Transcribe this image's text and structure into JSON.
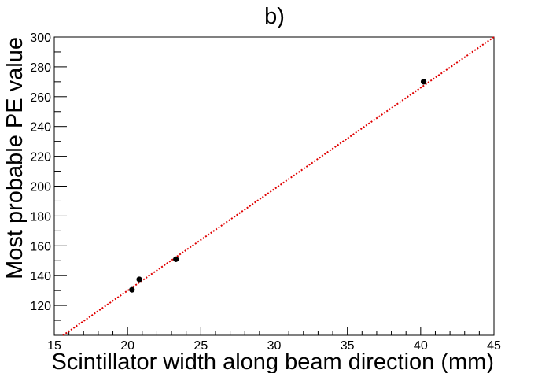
{
  "chart_data": {
    "type": "scatter",
    "title": "b)",
    "xlabel": "Scintillator width along beam direction (mm)",
    "ylabel": "Most probable PE value",
    "xlim": [
      15,
      45
    ],
    "ylim": [
      100,
      300
    ],
    "x_ticks": [
      15,
      20,
      25,
      30,
      35,
      40,
      45
    ],
    "y_ticks": [
      120,
      140,
      160,
      180,
      200,
      220,
      240,
      260,
      280,
      300
    ],
    "grid": false,
    "legend": "none",
    "series": [
      {
        "marker_color": "#000000",
        "points": [
          {
            "x": 20.3,
            "y": 130.5
          },
          {
            "x": 20.8,
            "y": 137.5
          },
          {
            "x": 23.3,
            "y": 151.0
          },
          {
            "x": 40.2,
            "y": 270.0
          }
        ]
      }
    ],
    "fit_line": {
      "style": "dotted",
      "color": "#e00000",
      "points": [
        {
          "x": 15.6,
          "y": 100
        },
        {
          "x": 45,
          "y": 300
        }
      ]
    }
  }
}
